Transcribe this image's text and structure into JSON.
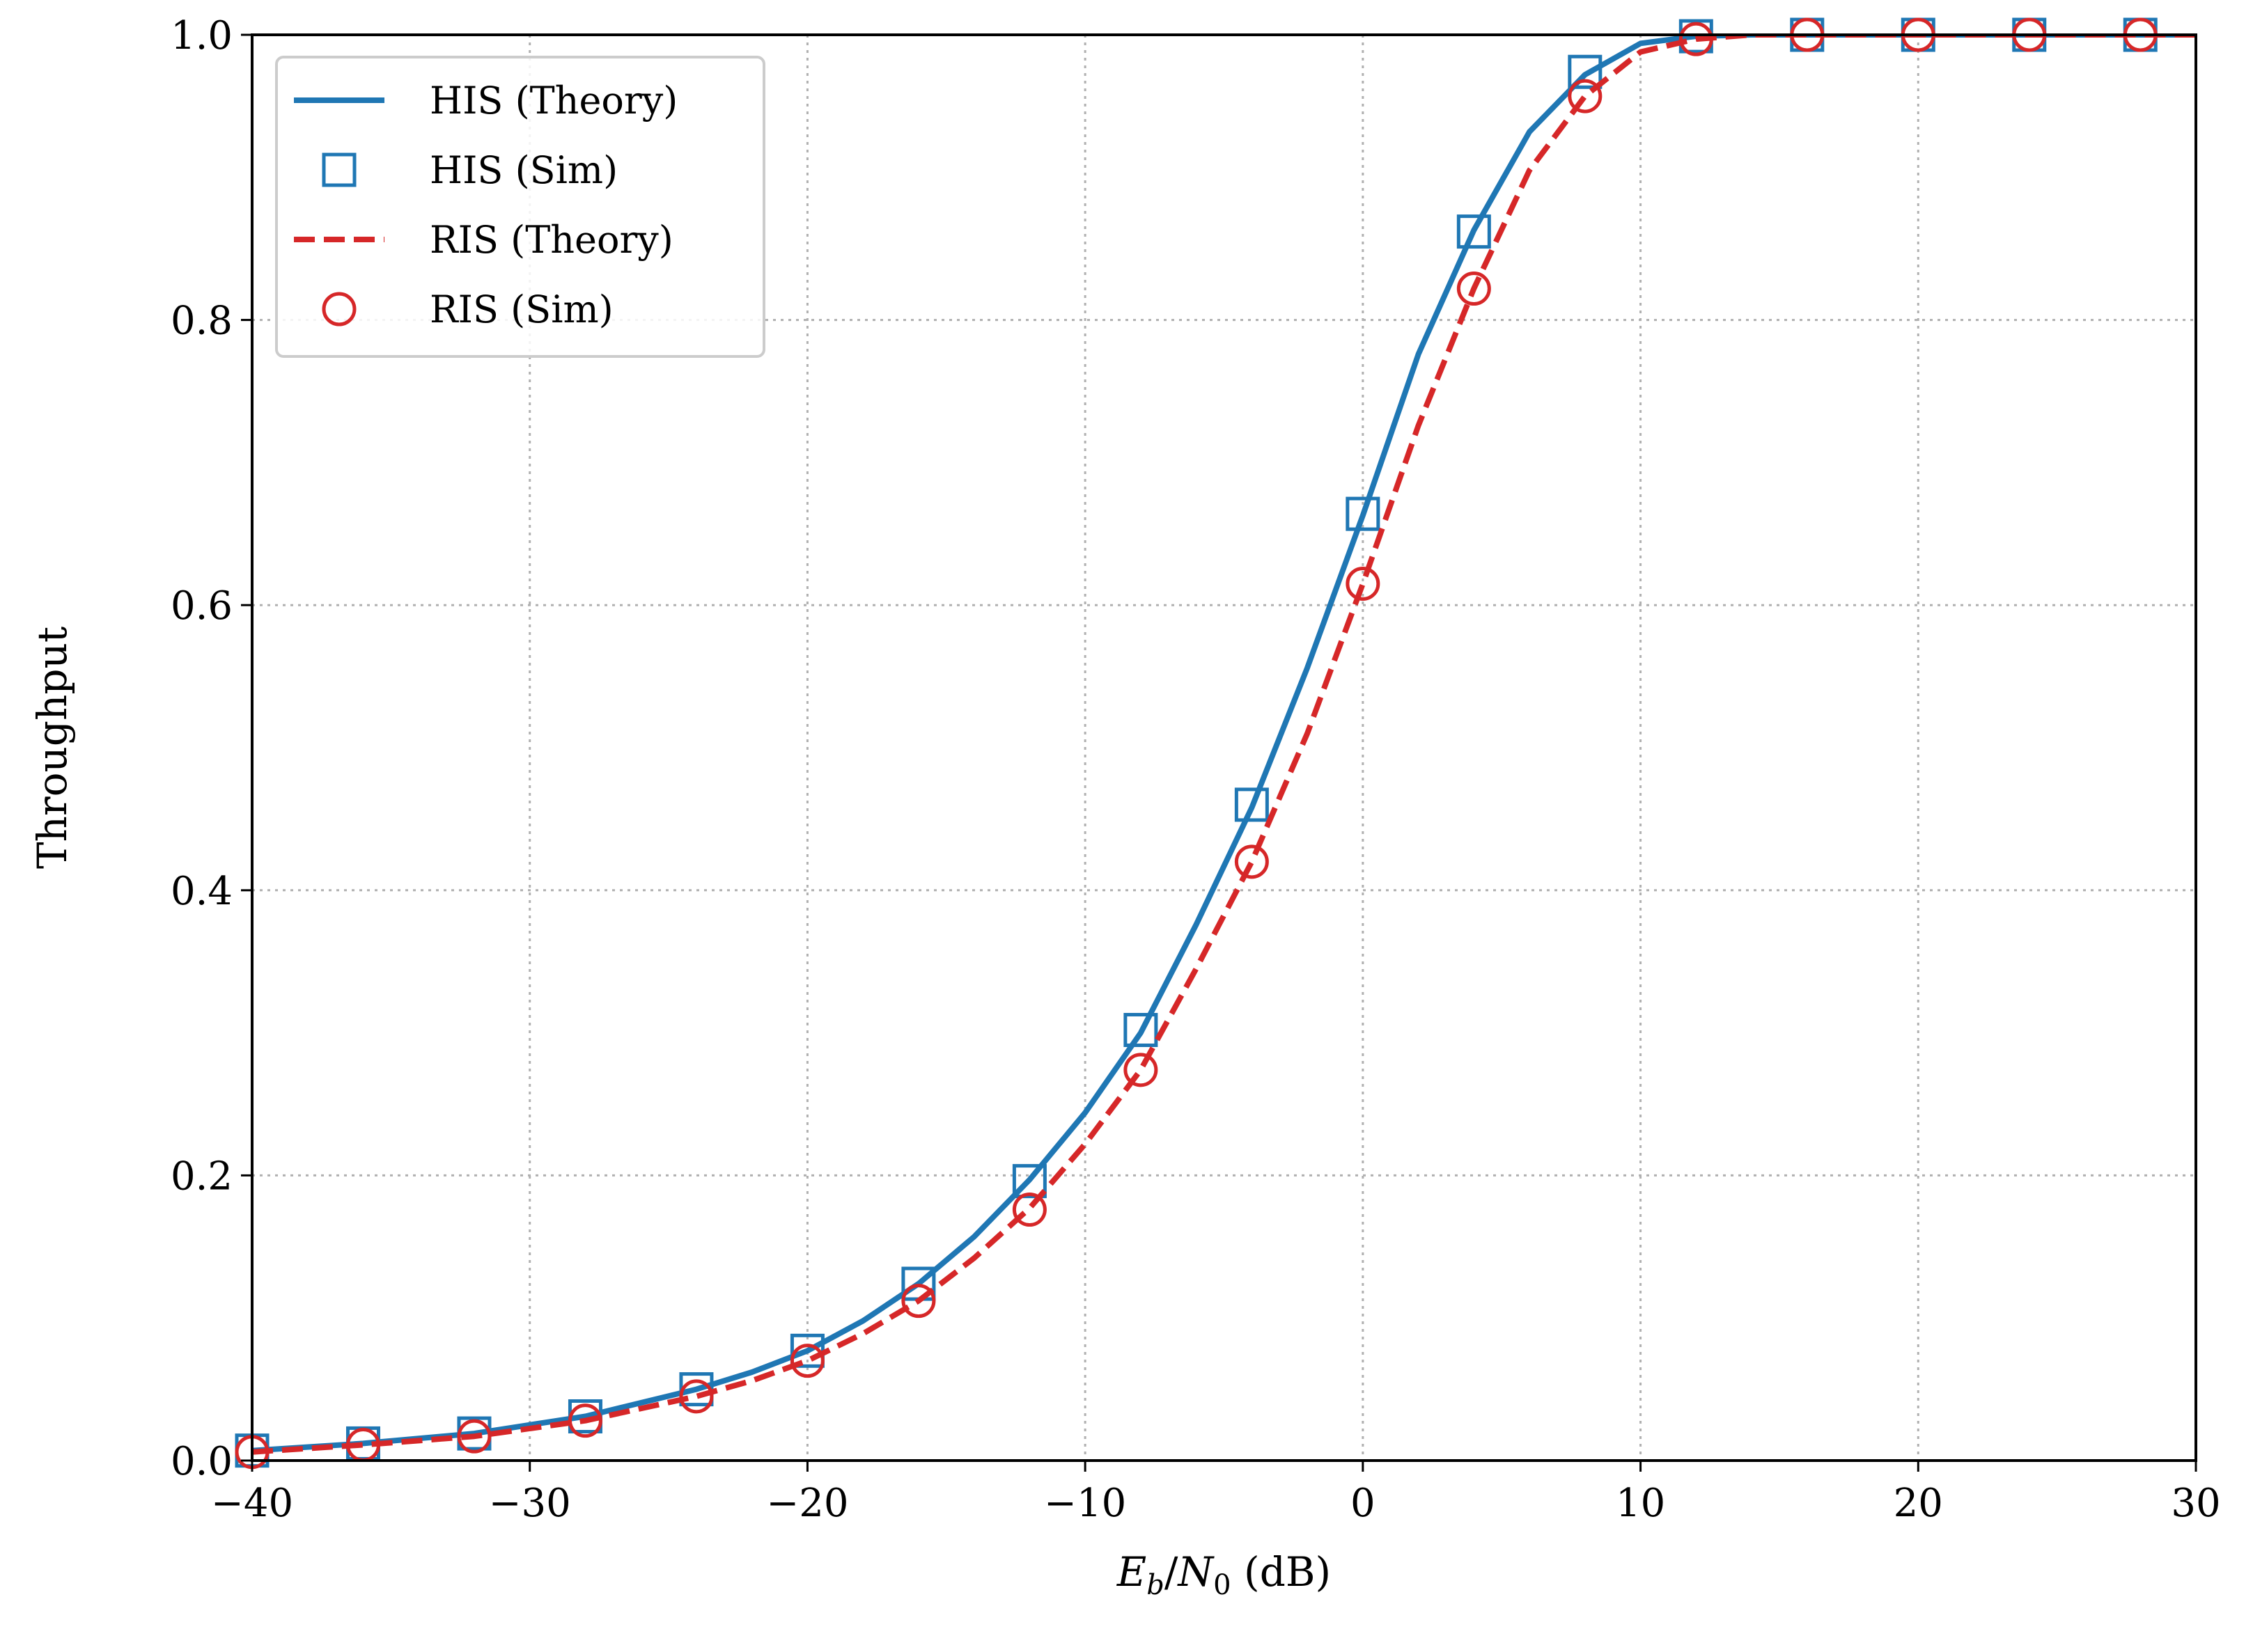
{
  "chart_data": {
    "type": "line",
    "title": "",
    "xlabel": {
      "prefix_main": "E",
      "prefix_sub": "b",
      "slash": "/",
      "mid_main": "N",
      "mid_sub": "0",
      "suffix": " (dB)"
    },
    "ylabel": "Throughput",
    "xlim": [
      -40,
      30
    ],
    "ylim": [
      0,
      1.0
    ],
    "xticks": [
      -40,
      -30,
      -20,
      -10,
      0,
      10,
      20,
      30
    ],
    "xtick_labels": [
      "−40",
      "−30",
      "−20",
      "−10",
      "0",
      "10",
      "20",
      "30"
    ],
    "yticks": [
      0.0,
      0.2,
      0.4,
      0.6,
      0.8,
      1.0
    ],
    "ytick_labels": [
      "0.0",
      "0.2",
      "0.4",
      "0.6",
      "0.8",
      "1.0"
    ],
    "grid": true,
    "legend_position": "top-left",
    "series": [
      {
        "name": "HIS (Theory)",
        "style": "solid-line",
        "color": "#1f77b4",
        "x": [
          -40,
          -36,
          -32,
          -28,
          -24,
          -22,
          -20,
          -18,
          -16,
          -14,
          -12,
          -10,
          -8,
          -6,
          -4,
          -2,
          0,
          2,
          4,
          6,
          8,
          10,
          12,
          14,
          16,
          20,
          24,
          28,
          30
        ],
        "y": [
          0.007,
          0.012,
          0.019,
          0.031,
          0.05,
          0.062,
          0.077,
          0.098,
          0.124,
          0.157,
          0.197,
          0.244,
          0.3,
          0.376,
          0.458,
          0.556,
          0.663,
          0.776,
          0.863,
          0.932,
          0.972,
          0.994,
          0.999,
          1.0,
          1.0,
          1.0,
          1.0,
          1.0,
          1.0
        ]
      },
      {
        "name": "HIS (Sim)",
        "style": "square-marker",
        "color": "#1f77b4",
        "x": [
          -40,
          -36,
          -32,
          -28,
          -24,
          -20,
          -16,
          -12,
          -8,
          -4,
          0,
          4,
          8,
          12,
          16,
          20,
          24,
          28
        ],
        "y": [
          0.007,
          0.012,
          0.019,
          0.031,
          0.05,
          0.077,
          0.124,
          0.196,
          0.302,
          0.46,
          0.664,
          0.862,
          0.974,
          0.999,
          1.0,
          1.0,
          1.0,
          1.0
        ]
      },
      {
        "name": "RIS (Theory)",
        "style": "dashed-line",
        "color": "#d62728",
        "x": [
          -40,
          -36,
          -32,
          -28,
          -24,
          -22,
          -20,
          -18,
          -16,
          -14,
          -12,
          -10,
          -8,
          -6,
          -4,
          -2,
          0,
          2,
          4,
          6,
          8,
          10,
          12,
          14,
          16,
          20,
          24,
          28,
          30
        ],
        "y": [
          0.006,
          0.011,
          0.017,
          0.028,
          0.045,
          0.056,
          0.07,
          0.089,
          0.112,
          0.142,
          0.177,
          0.222,
          0.274,
          0.345,
          0.42,
          0.51,
          0.615,
          0.726,
          0.822,
          0.905,
          0.957,
          0.988,
          0.997,
          1.0,
          1.0,
          1.0,
          1.0,
          1.0,
          1.0
        ]
      },
      {
        "name": "RIS (Sim)",
        "style": "circle-marker",
        "color": "#d62728",
        "x": [
          -40,
          -36,
          -32,
          -28,
          -24,
          -20,
          -16,
          -12,
          -8,
          -4,
          0,
          4,
          8,
          12,
          16,
          20,
          24,
          28
        ],
        "y": [
          0.006,
          0.011,
          0.017,
          0.028,
          0.045,
          0.07,
          0.112,
          0.176,
          0.274,
          0.42,
          0.615,
          0.822,
          0.957,
          0.997,
          1.0,
          1.0,
          1.0,
          1.0
        ]
      }
    ]
  }
}
